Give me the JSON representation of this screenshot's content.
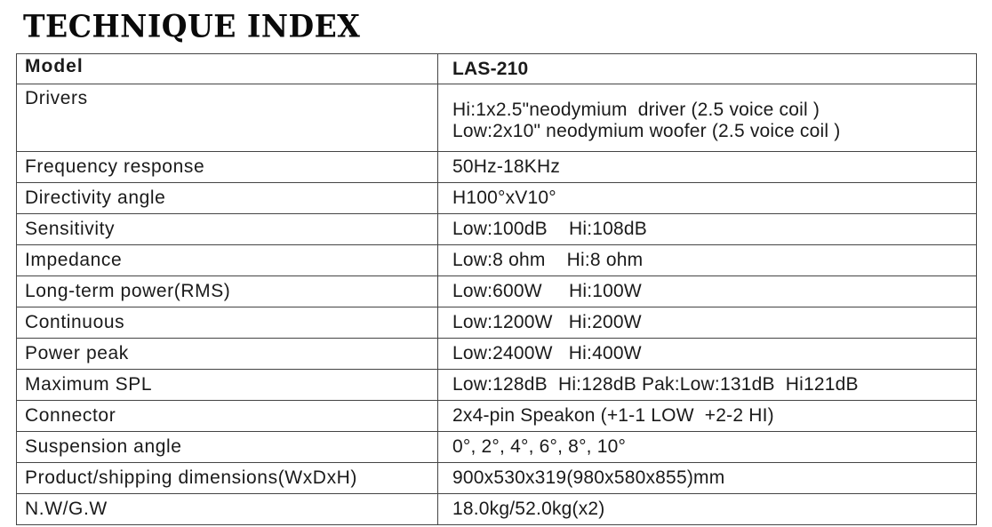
{
  "title": "TECHNIQUE INDEX",
  "header": {
    "label": "Model",
    "value": "LAS-210"
  },
  "rows": [
    {
      "label": "Drivers",
      "value": "Hi:1x2.5\"neodymium  driver (2.5 voice coil )\nLow:2x10\" neodymium woofer (2.5 voice coil )"
    },
    {
      "label": "Frequency response",
      "value": "50Hz-18KHz"
    },
    {
      "label": "Directivity angle",
      "value": "H100°xV10°"
    },
    {
      "label": "Sensitivity",
      "value": "Low:100dB    Hi:108dB"
    },
    {
      "label": "Impedance",
      "value": "Low:8 ohm    Hi:8 ohm"
    },
    {
      "label": "Long-term power(RMS)",
      "value": "Low:600W     Hi:100W"
    },
    {
      "label": "Continuous",
      "value": "Low:1200W   Hi:200W"
    },
    {
      "label": "Power peak",
      "value": "Low:2400W   Hi:400W"
    },
    {
      "label": "Maximum SPL",
      "value": "Low:128dB  Hi:128dB Pak:Low:131dB  Hi121dB"
    },
    {
      "label": "Connector",
      "value": "2x4-pin Speakon (+1-1 LOW  +2-2 HI)"
    },
    {
      "label": "Suspension angle",
      "value": "0°, 2°, 4°, 6°, 8°, 10°"
    },
    {
      "label": "Product/shipping dimensions(WxDxH)",
      "value": "900x530x319(980x580x855)mm"
    },
    {
      "label": "N.W/G.W",
      "value": "18.0kg/52.0kg(x2)"
    }
  ]
}
